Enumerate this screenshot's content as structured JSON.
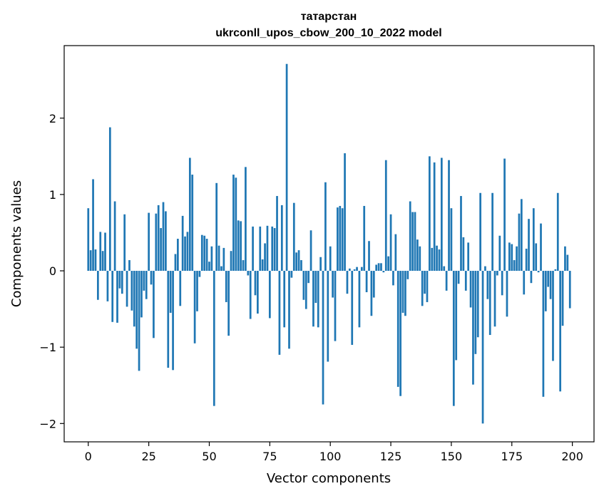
{
  "chart_data": {
    "type": "bar",
    "title_line1": "татарстан",
    "title_line2": "ukrconll_upos_cbow_200_10_2022 model",
    "xlabel": "Vector components",
    "ylabel": "Components values",
    "xlim": [
      -9.95,
      208.95
    ],
    "ylim": [
      -2.24,
      2.95
    ],
    "xticks": [
      0,
      25,
      50,
      75,
      100,
      125,
      150,
      175,
      200
    ],
    "xtick_labels": [
      "0",
      "25",
      "50",
      "75",
      "100",
      "125",
      "150",
      "175",
      "200"
    ],
    "yticks": [
      -2,
      -1,
      0,
      1,
      2
    ],
    "ytick_labels": [
      "−2",
      "−1",
      "0",
      "1",
      "2"
    ],
    "bar_color": "#1f77b4",
    "grid": false,
    "x": [
      0,
      1,
      2,
      3,
      4,
      5,
      6,
      7,
      8,
      9,
      10,
      11,
      12,
      13,
      14,
      15,
      16,
      17,
      18,
      19,
      20,
      21,
      22,
      23,
      24,
      25,
      26,
      27,
      28,
      29,
      30,
      31,
      32,
      33,
      34,
      35,
      36,
      37,
      38,
      39,
      40,
      41,
      42,
      43,
      44,
      45,
      46,
      47,
      48,
      49,
      50,
      51,
      52,
      53,
      54,
      55,
      56,
      57,
      58,
      59,
      60,
      61,
      62,
      63,
      64,
      65,
      66,
      67,
      68,
      69,
      70,
      71,
      72,
      73,
      74,
      75,
      76,
      77,
      78,
      79,
      80,
      81,
      82,
      83,
      84,
      85,
      86,
      87,
      88,
      89,
      90,
      91,
      92,
      93,
      94,
      95,
      96,
      97,
      98,
      99,
      100,
      101,
      102,
      103,
      104,
      105,
      106,
      107,
      108,
      109,
      110,
      111,
      112,
      113,
      114,
      115,
      116,
      117,
      118,
      119,
      120,
      121,
      122,
      123,
      124,
      125,
      126,
      127,
      128,
      129,
      130,
      131,
      132,
      133,
      134,
      135,
      136,
      137,
      138,
      139,
      140,
      141,
      142,
      143,
      144,
      145,
      146,
      147,
      148,
      149,
      150,
      151,
      152,
      153,
      154,
      155,
      156,
      157,
      158,
      159,
      160,
      161,
      162,
      163,
      164,
      165,
      166,
      167,
      168,
      169,
      170,
      171,
      172,
      173,
      174,
      175,
      176,
      177,
      178,
      179,
      180,
      181,
      182,
      183,
      184,
      185,
      186,
      187,
      188,
      189,
      190,
      191,
      192,
      193,
      194,
      195,
      196,
      197,
      198,
      199
    ],
    "values": [
      0.82,
      0.27,
      1.2,
      0.28,
      -0.38,
      0.51,
      0.26,
      0.5,
      -0.4,
      1.88,
      -0.67,
      0.91,
      -0.68,
      -0.23,
      -0.3,
      0.74,
      -0.47,
      0.14,
      -0.52,
      -0.73,
      -1.02,
      -1.31,
      -0.61,
      -0.26,
      -0.37,
      0.76,
      -0.18,
      -0.88,
      0.75,
      0.86,
      0.56,
      0.9,
      0.78,
      -1.27,
      -0.55,
      -1.3,
      0.22,
      0.42,
      -0.46,
      0.72,
      0.45,
      0.51,
      1.48,
      1.26,
      -0.95,
      -0.53,
      -0.08,
      0.47,
      0.46,
      0.42,
      0.12,
      0.32,
      -1.77,
      1.15,
      0.33,
      0.06,
      0.3,
      -0.41,
      -0.85,
      0.26,
      1.26,
      1.22,
      0.66,
      0.65,
      0.14,
      1.36,
      -0.06,
      -0.63,
      0.58,
      -0.32,
      -0.56,
      0.58,
      0.15,
      0.36,
      0.59,
      -0.62,
      0.58,
      0.56,
      0.98,
      -1.1,
      0.86,
      -0.74,
      2.71,
      -1.02,
      -0.09,
      0.89,
      0.24,
      0.27,
      0.14,
      -0.38,
      -0.5,
      -0.16,
      0.53,
      -0.73,
      -0.42,
      -0.74,
      0.18,
      -1.75,
      1.16,
      -1.19,
      0.32,
      -0.35,
      -0.92,
      0.83,
      0.85,
      0.82,
      1.54,
      -0.3,
      0.03,
      -0.97,
      0.02,
      0.05,
      -0.74,
      0.05,
      0.85,
      -0.28,
      0.39,
      -0.59,
      -0.35,
      0.08,
      0.1,
      0.1,
      -0.02,
      1.45,
      0.19,
      0.74,
      -0.19,
      0.48,
      -1.52,
      -1.64,
      -0.55,
      -0.59,
      -0.11,
      0.91,
      0.77,
      0.77,
      0.41,
      0.32,
      -0.46,
      -0.3,
      -0.41,
      1.5,
      0.3,
      1.42,
      0.33,
      0.28,
      1.48,
      0.06,
      -0.26,
      1.45,
      0.82,
      -1.77,
      -1.17,
      -0.17,
      0.98,
      0.44,
      -0.26,
      0.37,
      -0.48,
      -1.49,
      -1.09,
      -0.87,
      1.02,
      -2.0,
      0.06,
      -0.37,
      -0.84,
      1.02,
      -0.73,
      -0.06,
      0.46,
      -0.32,
      1.47,
      -0.6,
      0.37,
      0.35,
      0.14,
      0.32,
      0.75,
      0.94,
      -0.31,
      0.29,
      0.68,
      -0.16,
      0.82,
      0.36,
      -0.02,
      0.62,
      -1.65,
      -0.53,
      -0.21,
      -0.37,
      -1.18,
      0.02,
      1.02,
      -1.58,
      -0.72,
      0.32,
      0.21,
      -0.49
    ]
  }
}
